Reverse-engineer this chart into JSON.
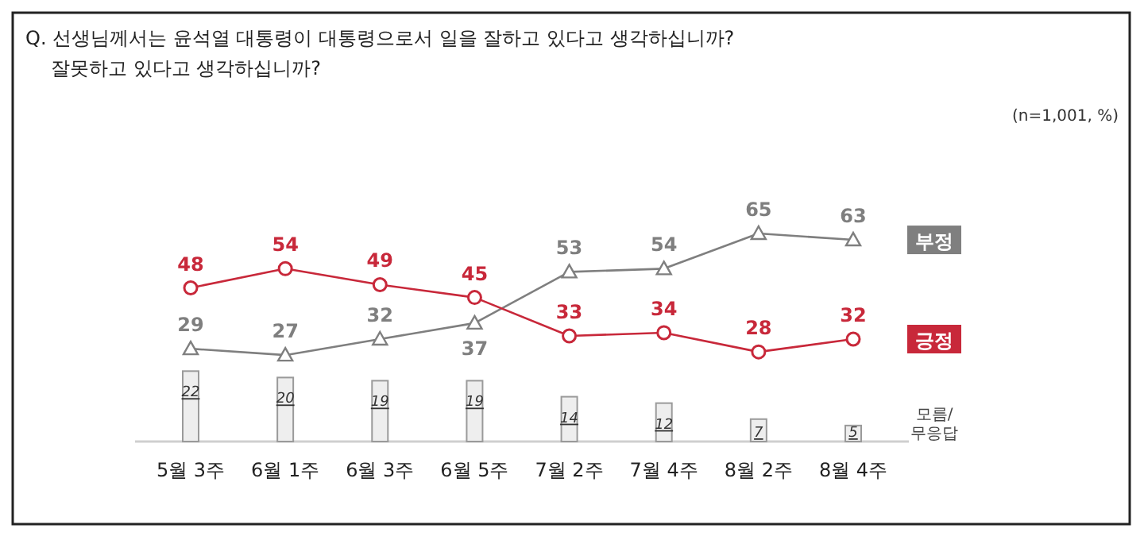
{
  "chart_data": {
    "type": "line",
    "title": "Q. 선생님께서는 윤석열 대통령이 대통령으로서 일을 잘하고 있다고 생각하십니까? 잘못하고 있다고 생각하십니까?",
    "annotations": [
      "(n=1,001, %)"
    ],
    "categories": [
      "5월 3주",
      "6월 1주",
      "6월 3주",
      "6월 5주",
      "7월 2주",
      "7월 4주",
      "8월 2주",
      "8월 4주"
    ],
    "data_labels": true,
    "grid": false,
    "series": [
      {
        "name": "모름/무응답",
        "type": "bar",
        "color": "#eeeeee",
        "values": [
          22,
          20,
          19,
          19,
          14,
          12,
          7,
          5
        ]
      },
      {
        "name": "부정",
        "color": "#7f7f7f",
        "marker": "triangle",
        "values": [
          29,
          27,
          32,
          37,
          53,
          54,
          65,
          63
        ]
      },
      {
        "name": "긍정",
        "color": "#c8283a",
        "marker": "circle",
        "values": [
          48,
          54,
          49,
          45,
          33,
          34,
          28,
          32
        ]
      }
    ]
  }
}
